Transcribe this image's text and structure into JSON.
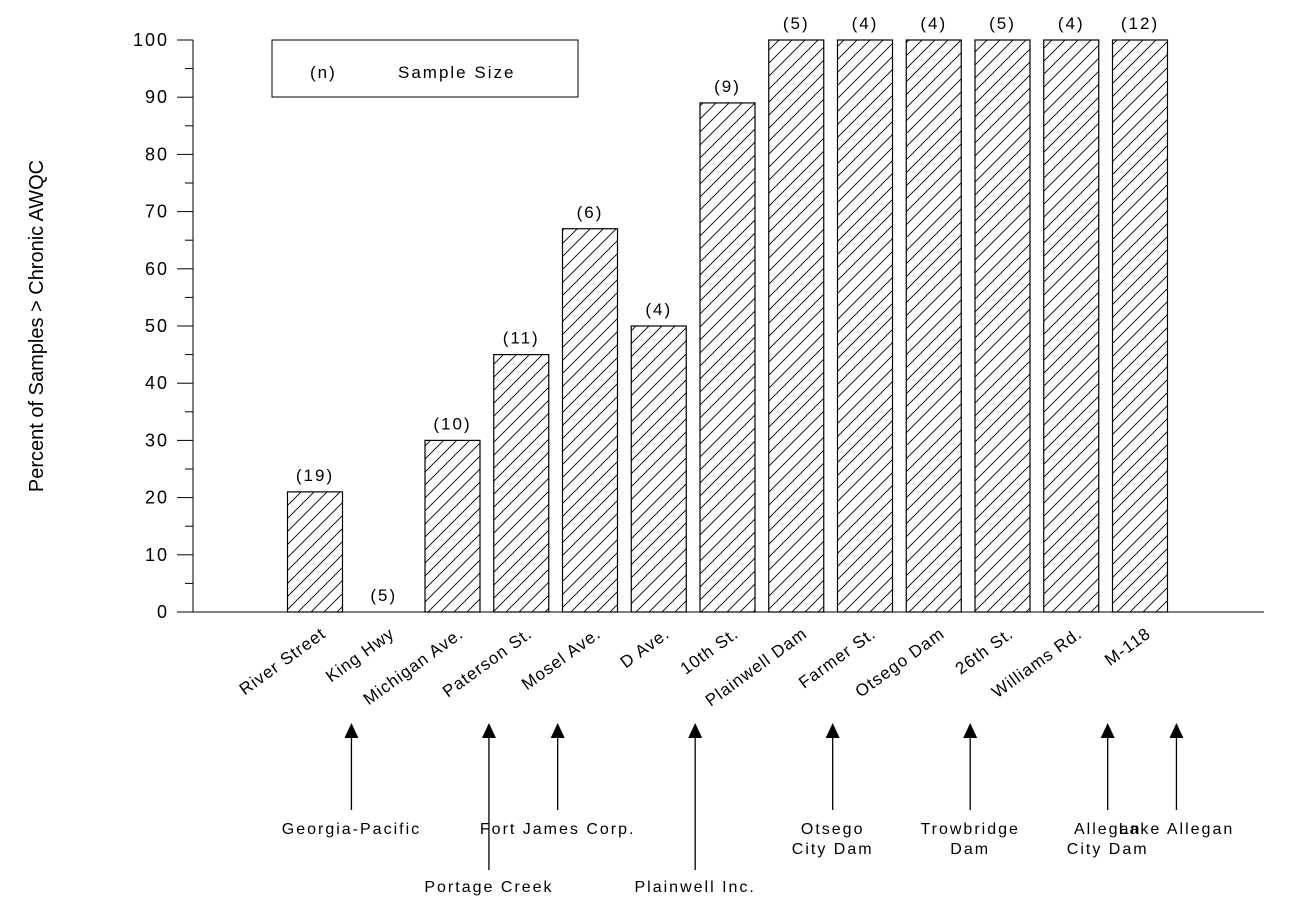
{
  "chart_data": {
    "type": "bar",
    "ylabel": "Percent of Samples > Chronic AWQC",
    "xlabel": "",
    "ylim": [
      0,
      100
    ],
    "yticks": [
      0,
      10,
      20,
      30,
      40,
      50,
      60,
      70,
      80,
      90,
      100
    ],
    "bar_fill": "diagonal-hatch",
    "legend": {
      "symbol": "(n)",
      "text": "Sample Size",
      "position": "top-left"
    },
    "categories": [
      "River Street",
      "King Hwy",
      "Michigan Ave.",
      "Paterson St.",
      "Mosel Ave.",
      "D Ave.",
      "10th St.",
      "Plainwell Dam",
      "Farmer St.",
      "Otsego Dam",
      "26th St.",
      "Williams Rd.",
      "M-118"
    ],
    "values": [
      21,
      0,
      30,
      45,
      67,
      50,
      89,
      100,
      100,
      100,
      100,
      100,
      100
    ],
    "sample_sizes": [
      "(19)",
      "(5)",
      "(10)",
      "(11)",
      "(6)",
      "(4)",
      "(9)",
      "(5)",
      "(4)",
      "(4)",
      "(5)",
      "(4)",
      "(12)"
    ],
    "annotations": [
      {
        "lines": [
          "Georgia-Pacific"
        ],
        "row": "upper",
        "after_category": "River Street"
      },
      {
        "lines": [
          "Portage Creek"
        ],
        "row": "lower",
        "after_category": "Michigan Ave."
      },
      {
        "lines": [
          "Fort James Corp."
        ],
        "row": "upper",
        "after_category": "Paterson St."
      },
      {
        "lines": [
          "Plainwell Inc."
        ],
        "row": "lower",
        "after_category": "D Ave."
      },
      {
        "lines": [
          "Otsego",
          "City Dam"
        ],
        "row": "upper",
        "after_category": "Plainwell Dam"
      },
      {
        "lines": [
          "Trowbridge",
          "Dam"
        ],
        "row": "upper",
        "after_category": "Otsego Dam"
      },
      {
        "lines": [
          "Allegan",
          "City Dam"
        ],
        "row": "upper",
        "after_category": "Williams Rd."
      },
      {
        "lines": [
          "Lake Allegan"
        ],
        "row": "upper",
        "after_category": "M-118"
      }
    ]
  }
}
